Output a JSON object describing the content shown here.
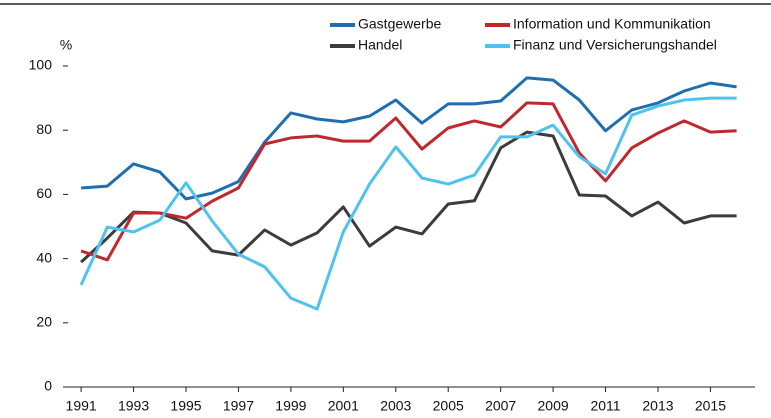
{
  "chart_data": {
    "type": "line",
    "y_label": "%",
    "x": [
      1991,
      1992,
      1993,
      1994,
      1995,
      1996,
      1997,
      1998,
      1999,
      2000,
      2001,
      2002,
      2003,
      2004,
      2005,
      2006,
      2007,
      2008,
      2009,
      2010,
      2011,
      2012,
      2013,
      2014,
      2015,
      2016
    ],
    "series": [
      {
        "name": "Gastgewerbe",
        "color": "#1f6eb0",
        "values": [
          62,
          62.6,
          69.5,
          67,
          58.6,
          60.4,
          64,
          76.3,
          85.4,
          83.5,
          82.6,
          84.4,
          89.4,
          82.2,
          88.2,
          88.2,
          89.1,
          96.3,
          95.6,
          89.4,
          79.8,
          86.3,
          88.5,
          92.2,
          94.7,
          93.5
        ]
      },
      {
        "name": "Handel",
        "color": "#3c3c3c",
        "values": [
          38.9,
          46.4,
          54.5,
          54.2,
          51.1,
          42.4,
          41.1,
          48.9,
          44.2,
          48,
          56.1,
          43.9,
          49.8,
          47.7,
          57,
          58,
          74.5,
          79.4,
          78.2,
          59.8,
          59.5,
          53.3,
          57.6,
          51.1,
          53.3,
          53.3
        ]
      },
      {
        "name": "Information und Kommunikation",
        "color": "#c0282d",
        "values": [
          42.4,
          39.6,
          54.2,
          54.2,
          52.6,
          57.9,
          62,
          75.7,
          77.6,
          78.2,
          76.6,
          76.6,
          83.8,
          74.1,
          80.7,
          82.9,
          81,
          88.5,
          88.2,
          72.9,
          64.2,
          74.5,
          79.1,
          82.9,
          79.4,
          79.8
        ]
      },
      {
        "name": "Finanz und Versicherungshandel",
        "color": "#4fc3ee",
        "values": [
          31.8,
          49.8,
          48.3,
          52,
          63.6,
          51.7,
          41.4,
          37.4,
          27.7,
          24.3,
          48.3,
          63.2,
          74.8,
          65.1,
          63.2,
          66,
          77.9,
          77.9,
          81.6,
          71.7,
          66.4,
          84.7,
          87.5,
          89.4,
          90,
          90
        ]
      }
    ],
    "xlim": [
      1990.5,
      2016.7
    ],
    "xticks": [
      1991,
      1993,
      1995,
      1997,
      1999,
      2001,
      2003,
      2005,
      2007,
      2009,
      2011,
      2013,
      2015
    ],
    "ylim": [
      0,
      100
    ],
    "yticks": [
      0,
      20,
      40,
      60,
      80,
      100
    ],
    "grid": false
  }
}
